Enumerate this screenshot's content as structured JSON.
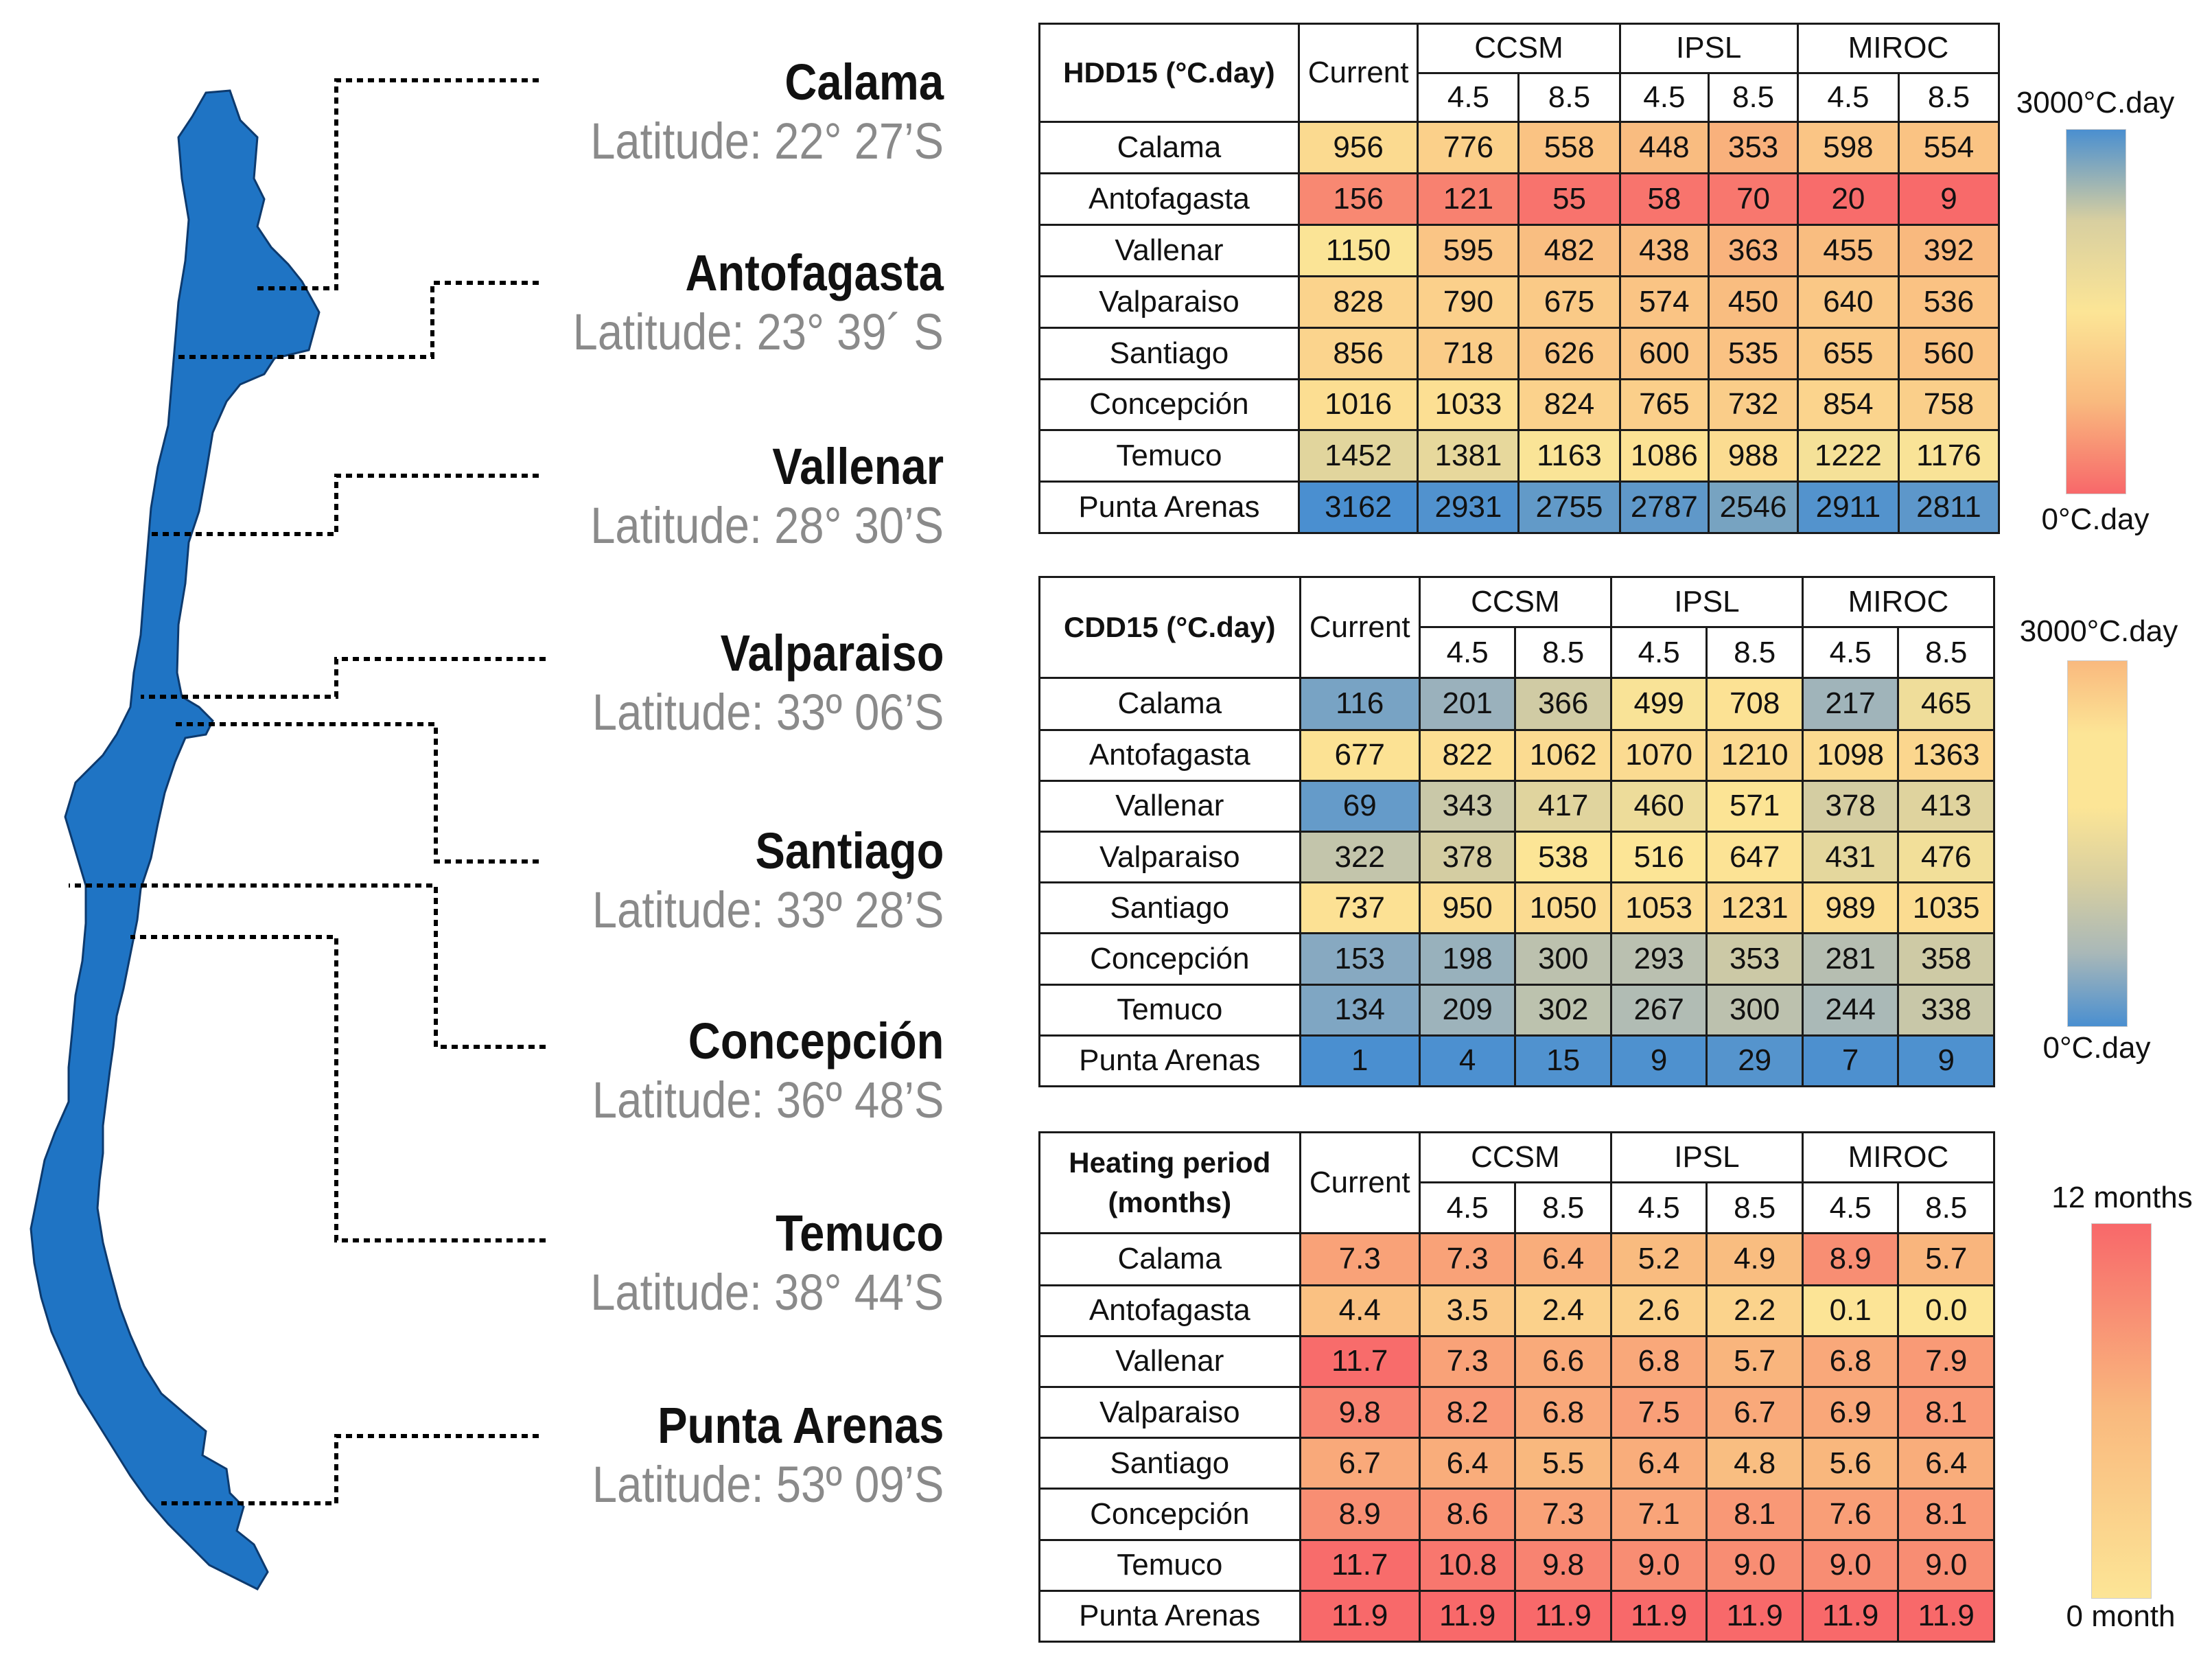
{
  "colors": {
    "map_fill": "#1f74c4",
    "map_stroke": "#0d3a6e",
    "blue": "#4a8fd0",
    "gray_blue": "#a9b8b8",
    "beige": "#d8cfa0",
    "yellow": "#fce596",
    "orange": "#f9b97e",
    "red": "#f8686a"
  },
  "cities": [
    {
      "name": "Calama",
      "latitude": "Latitude: 22° 27’S"
    },
    {
      "name": "Antofagasta",
      "latitude": "Latitude: 23° 39´ S"
    },
    {
      "name": "Vallenar",
      "latitude": "Latitude: 28° 30’S"
    },
    {
      "name": "Valparaiso",
      "latitude": "Latitude: 33º 06’S"
    },
    {
      "name": "Santiago",
      "latitude": "Latitude: 33º 28’S"
    },
    {
      "name": "Concepción",
      "latitude": "Latitude: 36º 48’S"
    },
    {
      "name": "Temuco",
      "latitude": "Latitude: 38° 44’S"
    },
    {
      "name": "Punta Arenas",
      "latitude": "Latitude: 53º 09’S"
    }
  ],
  "table_header": {
    "current": "Current",
    "models": [
      "CCSM",
      "IPSL",
      "MIROC"
    ],
    "scenarios": [
      "4.5",
      "8.5"
    ]
  },
  "chart_data": [
    {
      "type": "table",
      "title": "HDD15 (°C.day)",
      "row_labels": [
        "Calama",
        "Antofagasta",
        "Vallenar",
        "Valparaiso",
        "Santiago",
        "Concepción",
        "Temuco",
        "Punta Arenas"
      ],
      "columns": [
        "Current",
        "CCSM 4.5",
        "CCSM 8.5",
        "IPSL 4.5",
        "IPSL 8.5",
        "MIROC 4.5",
        "MIROC 8.5"
      ],
      "values": [
        [
          "956",
          "776",
          "558",
          "448",
          "353",
          "598",
          "554"
        ],
        [
          "156",
          "121",
          "55",
          "58",
          "70",
          "20",
          "9"
        ],
        [
          "1150",
          "595",
          "482",
          "438",
          "363",
          "455",
          "392"
        ],
        [
          "828",
          "790",
          "675",
          "574",
          "450",
          "640",
          "536"
        ],
        [
          "856",
          "718",
          "626",
          "600",
          "535",
          "655",
          "560"
        ],
        [
          "1016",
          "1033",
          "824",
          "765",
          "732",
          "854",
          "758"
        ],
        [
          "1452",
          "1381",
          "1163",
          "1086",
          "988",
          "1222",
          "1176"
        ],
        [
          "3162",
          "2931",
          "2755",
          "2787",
          "2546",
          "2911",
          "2811"
        ]
      ],
      "legend": {
        "max_label": "3000°C.day",
        "min_label": "0°C.day",
        "max": 3000,
        "min": 0
      },
      "scale": "red-yellow-blue"
    },
    {
      "type": "table",
      "title": "CDD15 (°C.day)",
      "row_labels": [
        "Calama",
        "Antofagasta",
        "Vallenar",
        "Valparaiso",
        "Santiago",
        "Concepción",
        "Temuco",
        "Punta Arenas"
      ],
      "columns": [
        "Current",
        "CCSM 4.5",
        "CCSM 8.5",
        "IPSL 4.5",
        "IPSL 8.5",
        "MIROC 4.5",
        "MIROC 8.5"
      ],
      "values": [
        [
          "116",
          "201",
          "366",
          "499",
          "708",
          "217",
          "465"
        ],
        [
          "677",
          "822",
          "1062",
          "1070",
          "1210",
          "1098",
          "1363"
        ],
        [
          "69",
          "343",
          "417",
          "460",
          "571",
          "378",
          "413"
        ],
        [
          "322",
          "378",
          "538",
          "516",
          "647",
          "431",
          "476"
        ],
        [
          "737",
          "950",
          "1050",
          "1053",
          "1231",
          "989",
          "1035"
        ],
        [
          "153",
          "198",
          "300",
          "293",
          "353",
          "281",
          "358"
        ],
        [
          "134",
          "209",
          "302",
          "267",
          "300",
          "244",
          "338"
        ],
        [
          "1",
          "4",
          "15",
          "9",
          "29",
          "7",
          "9"
        ]
      ],
      "legend": {
        "max_label": "3000°C.day",
        "min_label": "0°C.day",
        "max": 3000,
        "min": 0
      },
      "scale": "blue-yellow-orange"
    },
    {
      "type": "table",
      "title": "Heating period (months)",
      "row_labels": [
        "Calama",
        "Antofagasta",
        "Vallenar",
        "Valparaiso",
        "Santiago",
        "Concepción",
        "Temuco",
        "Punta Arenas"
      ],
      "columns": [
        "Current",
        "CCSM 4.5",
        "CCSM 8.5",
        "IPSL 4.5",
        "IPSL 8.5",
        "MIROC 4.5",
        "MIROC 8.5"
      ],
      "values": [
        [
          "7.3",
          "7.3",
          "6.4",
          "5.2",
          "4.9",
          "8.9",
          "5.7"
        ],
        [
          "4.4",
          "3.5",
          "2.4",
          "2.6",
          "2.2",
          "0.1",
          "0.0"
        ],
        [
          "11.7",
          "7.3",
          "6.6",
          "6.8",
          "5.7",
          "6.8",
          "7.9"
        ],
        [
          "9.8",
          "8.2",
          "6.8",
          "7.5",
          "6.7",
          "6.9",
          "8.1"
        ],
        [
          "6.7",
          "6.4",
          "5.5",
          "6.4",
          "4.8",
          "5.6",
          "6.4"
        ],
        [
          "8.9",
          "8.6",
          "7.3",
          "7.1",
          "8.1",
          "7.6",
          "8.1"
        ],
        [
          "11.7",
          "10.8",
          "9.8",
          "9.0",
          "9.0",
          "9.0",
          "9.0"
        ],
        [
          "11.9",
          "11.9",
          "11.9",
          "11.9",
          "11.9",
          "11.9",
          "11.9"
        ]
      ],
      "legend": {
        "max_label": "12 months",
        "min_label": "0 month",
        "max": 12,
        "min": 0
      },
      "scale": "yellow-red"
    }
  ]
}
